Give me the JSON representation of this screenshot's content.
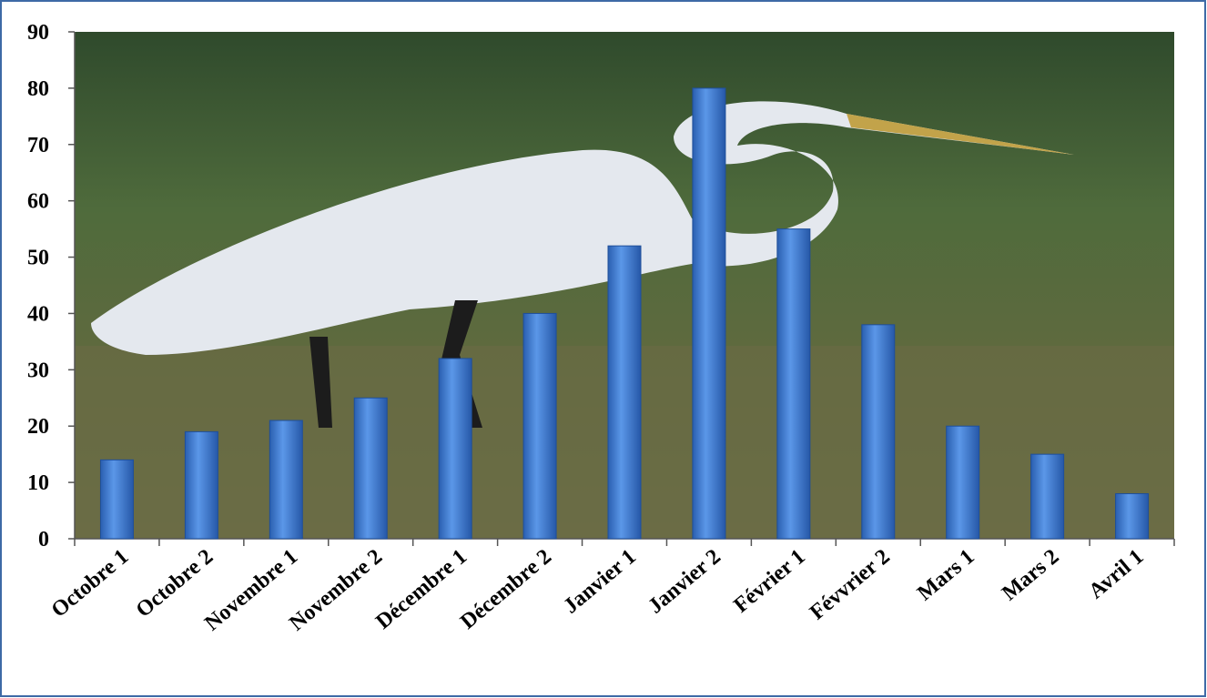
{
  "chart_data": {
    "type": "bar",
    "categories": [
      "Octobre 1",
      "Octobre 2",
      "Novembre 1",
      "Novembre 2",
      "Décembre 1",
      "Décembre 2",
      "Janvier 1",
      "Janvier 2",
      "Février 1",
      "Févvrier 2",
      "Mars 1",
      "Mars 2",
      "Avril 1"
    ],
    "values": [
      14,
      19,
      21,
      25,
      32,
      40,
      52,
      80,
      55,
      38,
      20,
      15,
      8
    ],
    "color": "#3b7bd4",
    "ylim": [
      0,
      90
    ],
    "yticks": [
      0,
      10,
      20,
      30,
      40,
      50,
      60,
      70,
      80,
      90
    ]
  }
}
